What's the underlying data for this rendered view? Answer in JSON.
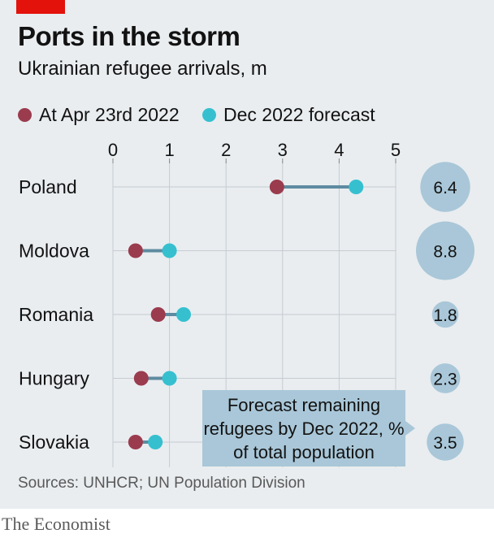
{
  "header": {
    "title": "Ports in the storm",
    "subtitle": "Ukrainian refugee arrivals, m"
  },
  "legend": [
    {
      "label": "At Apr 23rd 2022",
      "color": "#9b3b4e"
    },
    {
      "label": "Dec 2022 forecast",
      "color": "#36c0cf"
    }
  ],
  "callout": {
    "text": "Forecast remaining refugees by Dec 2022, % of total population"
  },
  "footer": {
    "source": "Sources: UNHCR; UN Population Division",
    "brand": "The Economist"
  },
  "colors": {
    "panel": "#e9edf0",
    "current": "#9b3b4e",
    "forecast": "#36c0cf",
    "connector": "#5e8ba1",
    "bubble": "#a9c7d8",
    "callout": "#a9c7d8",
    "brand_red": "#e3120b"
  },
  "chart_data": {
    "type": "dot",
    "title": "Ports in the storm",
    "subtitle": "Ukrainian refugee arrivals, m",
    "xlim": [
      0,
      5
    ],
    "x_ticks": [
      "0",
      "1",
      "2",
      "3",
      "4",
      "5"
    ],
    "grid": true,
    "categories": [
      "Poland",
      "Moldova",
      "Romania",
      "Hungary",
      "Slovakia"
    ],
    "series": [
      {
        "name": "At Apr 23rd 2022",
        "values": [
          2.9,
          0.4,
          0.8,
          0.5,
          0.4
        ]
      },
      {
        "name": "Dec 2022 forecast",
        "values": [
          4.3,
          1.0,
          1.25,
          1.0,
          0.75
        ]
      }
    ],
    "bubbles": {
      "label": "Forecast remaining refugees by Dec 2022, % of total population",
      "values": [
        "6.4",
        "8.8",
        "1.8",
        "2.3",
        "3.5"
      ]
    }
  }
}
